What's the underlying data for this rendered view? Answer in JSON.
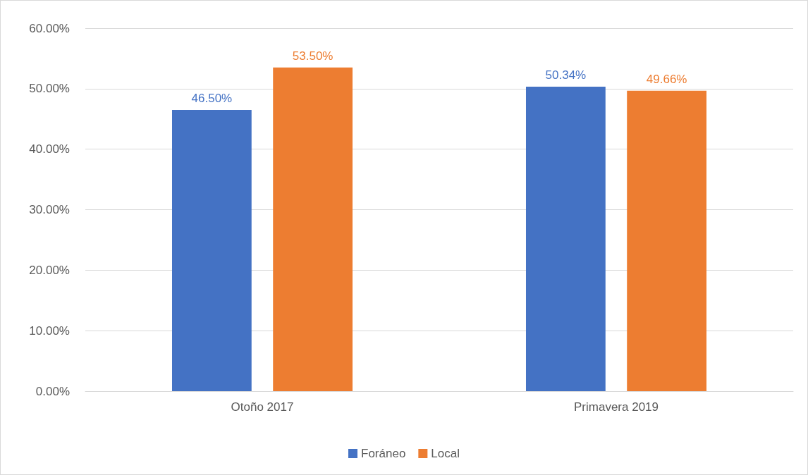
{
  "chart_data": {
    "type": "bar",
    "categories": [
      "Otoño 2017",
      "Primavera 2019"
    ],
    "series": [
      {
        "name": "Foráneo",
        "color": "#4472c4",
        "values": [
          46.5,
          50.34
        ],
        "value_labels": [
          "46.50%",
          "50.34%"
        ]
      },
      {
        "name": "Local",
        "color": "#ed7d31",
        "values": [
          53.5,
          49.66
        ],
        "value_labels": [
          "53.50%",
          "49.66%"
        ]
      }
    ],
    "ylim": [
      0,
      60
    ],
    "yticks": [
      {
        "value": 0,
        "label": "0.00%"
      },
      {
        "value": 10,
        "label": "10.00%"
      },
      {
        "value": 20,
        "label": "20.00%"
      },
      {
        "value": 30,
        "label": "30.00%"
      },
      {
        "value": 40,
        "label": "40.00%"
      },
      {
        "value": 50,
        "label": "50.00%"
      },
      {
        "value": 60,
        "label": "60.00%"
      }
    ],
    "grid": "y",
    "legend": "bottom"
  }
}
